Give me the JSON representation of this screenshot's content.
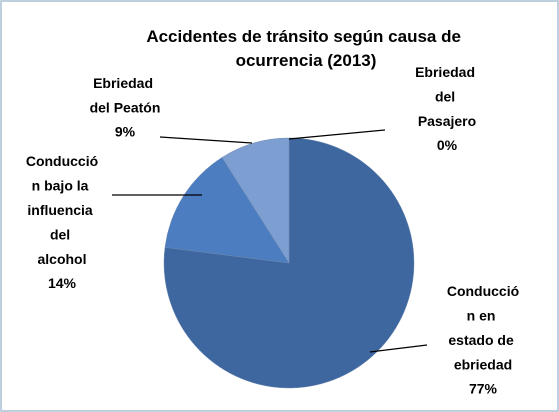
{
  "chart_data": {
    "type": "pie",
    "title": "Accidentes de tránsito según causa de ocurrencia (2013)",
    "categories": [
      "Ebriedad del Pasajero",
      "Conducción en estado de ebriedad",
      "Conducción bajo la influencia del alcohol",
      "Ebriedad del Peatón"
    ],
    "values": [
      0,
      77,
      14,
      9
    ],
    "value_labels": [
      "0%",
      "77%",
      "14%",
      "9%"
    ],
    "colors": [
      "#6f8fbf",
      "#3e679f",
      "#4b7dc0",
      "#7d9ed0"
    ]
  }
}
